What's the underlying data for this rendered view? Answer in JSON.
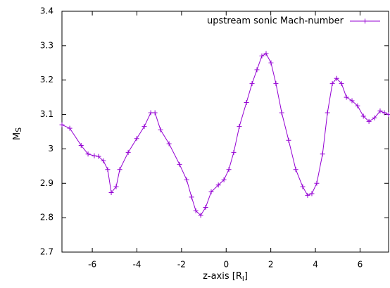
{
  "chart_data": {
    "type": "line",
    "xlabel": [
      "z-axis [R",
      "I",
      "]"
    ],
    "ylabel": [
      "M",
      "S"
    ],
    "x": [
      -7.36,
      -7.01,
      -6.5,
      -6.19,
      -5.91,
      -5.72,
      -5.5,
      -5.31,
      -5.15,
      -4.93,
      -4.77,
      -4.39,
      -4.01,
      -3.67,
      -3.38,
      -3.19,
      -2.94,
      -2.56,
      -2.09,
      -1.77,
      -1.55,
      -1.36,
      -1.14,
      -0.92,
      -0.67,
      -0.35,
      -0.1,
      0.12,
      0.34,
      0.59,
      0.91,
      1.16,
      1.38,
      1.6,
      1.79,
      2.01,
      2.23,
      2.49,
      2.8,
      3.12,
      3.43,
      3.65,
      3.84,
      4.06,
      4.32,
      4.54,
      4.76,
      4.95,
      5.17,
      5.39,
      5.64,
      5.89,
      6.15,
      6.4,
      6.65,
      6.9,
      7.09,
      7.28
    ],
    "series": [
      {
        "name": "upstream sonic Mach-number",
        "color": "#9400d3",
        "values": [
          3.07,
          3.06,
          3.01,
          2.985,
          2.98,
          2.978,
          2.965,
          2.94,
          2.873,
          2.89,
          2.94,
          2.99,
          3.03,
          3.065,
          3.105,
          3.105,
          3.055,
          3.015,
          2.955,
          2.91,
          2.86,
          2.82,
          2.807,
          2.83,
          2.875,
          2.895,
          2.91,
          2.94,
          2.99,
          3.065,
          3.135,
          3.19,
          3.23,
          3.27,
          3.277,
          3.25,
          3.19,
          3.105,
          3.025,
          2.94,
          2.89,
          2.865,
          2.87,
          2.9,
          2.985,
          3.105,
          3.19,
          3.205,
          3.19,
          3.15,
          3.14,
          3.125,
          3.095,
          3.08,
          3.09,
          3.11,
          3.105,
          3.1
        ]
      }
    ],
    "xlim": [
      -7.36,
      7.28
    ],
    "ylim": [
      2.7,
      3.4
    ],
    "xticks": [
      -6,
      -4,
      -2,
      0,
      2,
      4,
      6
    ],
    "yticks": [
      2.7,
      2.8,
      2.9,
      3,
      3.1,
      3.2,
      3.3,
      3.4
    ],
    "grid": false,
    "legend": "top-right",
    "marker": "+"
  }
}
